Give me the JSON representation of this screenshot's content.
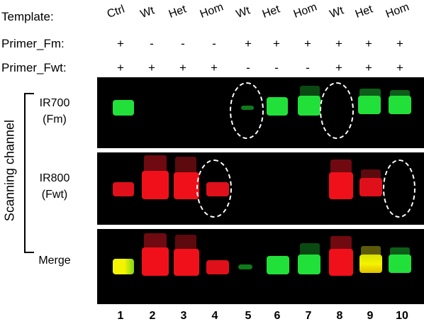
{
  "rows": {
    "template_label": "Template:",
    "primer_fm_label": "Primer_Fm:",
    "primer_fwt_label": "Primer_Fwt:"
  },
  "lanes": [
    {
      "number": "1",
      "template": "Ctrl",
      "fm": "+",
      "fwt": "+"
    },
    {
      "number": "2",
      "template": "Wt",
      "fm": "-",
      "fwt": "+"
    },
    {
      "number": "3",
      "template": "Het",
      "fm": "-",
      "fwt": "+"
    },
    {
      "number": "4",
      "template": "Hom",
      "fm": "-",
      "fwt": "+"
    },
    {
      "number": "5",
      "template": "Wt",
      "fm": "+",
      "fwt": "-"
    },
    {
      "number": "6",
      "template": "Het",
      "fm": "+",
      "fwt": "-"
    },
    {
      "number": "7",
      "template": "Hom",
      "fm": "+",
      "fwt": "-"
    },
    {
      "number": "8",
      "template": "Wt",
      "fm": "+",
      "fwt": "+"
    },
    {
      "number": "9",
      "template": "Het",
      "fm": "+",
      "fwt": "+"
    },
    {
      "number": "10",
      "template": "Hom",
      "fm": "+",
      "fwt": "+"
    }
  ],
  "channels": {
    "ir700_line1": "IR700",
    "ir700_line2": "(Fm)",
    "ir800_line1": "IR800",
    "ir800_line2": "(Fwt)",
    "merge": "Merge"
  },
  "axis_title": "Scanning channel",
  "colors": {
    "ir700": "#22e03a",
    "ir800": "#f0101a",
    "merge_overlap": "#f4f400",
    "background": "#000000",
    "ring": "#ffffff"
  }
}
